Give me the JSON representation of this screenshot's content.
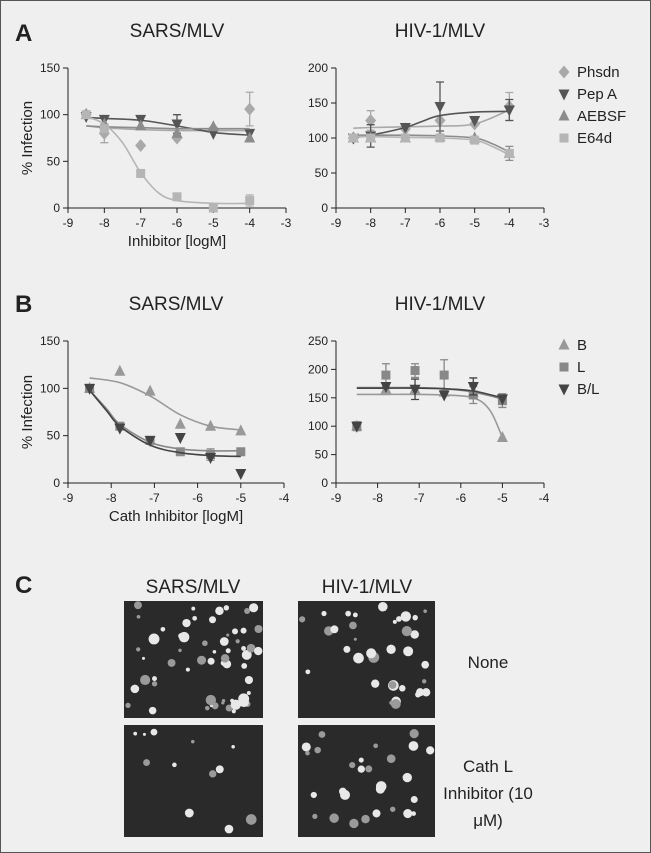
{
  "panel_labels": [
    "A",
    "B",
    "C"
  ],
  "panel_c": {
    "columns": [
      "SARS/MLV",
      "HIV-1/MLV"
    ],
    "rows": [
      "None",
      "Cath L Inhibitor (10 μM)"
    ]
  },
  "chart_data": [
    {
      "type": "scatter",
      "title": "SARS/MLV",
      "xlabel": "Inhibitor [logM]",
      "ylabel": "% Infection",
      "xlim": [
        -9,
        -3
      ],
      "xticks": [
        -9,
        -8,
        -7,
        -6,
        -5,
        -4,
        -3
      ],
      "ylim": [
        0,
        150
      ],
      "yticks": [
        0,
        50,
        100,
        150
      ],
      "legend": false,
      "series": [
        {
          "color": "#a9a9a9",
          "marker": "diamond",
          "x": [
            -8.5,
            -8,
            -7,
            -6,
            -5,
            -4
          ],
          "values": [
            100,
            80,
            67,
            75,
            85,
            106
          ],
          "errors": [
            null,
            10,
            null,
            null,
            null,
            18
          ],
          "fit_x": [
            -8.5,
            -8,
            -7,
            -6,
            -5,
            -4
          ],
          "fit": [
            88,
            86,
            84,
            83,
            83,
            83
          ]
        },
        {
          "color": "#555555",
          "marker": "triangle-down",
          "x": [
            -8.5,
            -8,
            -7,
            -6,
            -5,
            -4
          ],
          "values": [
            98,
            95,
            95,
            90,
            80,
            80
          ],
          "errors": [
            null,
            null,
            null,
            10,
            null,
            null
          ],
          "fit_x": [
            -8.5,
            -8,
            -7,
            -6,
            -5,
            -4
          ],
          "fit": [
            97,
            96,
            94,
            88,
            81,
            78
          ]
        },
        {
          "color": "#8c8c8c",
          "marker": "triangle-up",
          "x": [
            -8.5,
            -8,
            -7,
            -6,
            -5,
            -4
          ],
          "values": [
            100,
            90,
            88,
            80,
            87,
            75
          ],
          "errors": [
            null,
            null,
            null,
            null,
            null,
            null
          ],
          "fit_x": [
            -8.5,
            -8,
            -7,
            -6,
            -5,
            -4
          ],
          "fit": [
            88,
            87,
            86,
            85,
            85,
            85
          ]
        },
        {
          "color": "#b5b5b5",
          "marker": "square",
          "x": [
            -8.5,
            -8,
            -7,
            -6,
            -5,
            -4
          ],
          "values": [
            100,
            85,
            37,
            12,
            0,
            8
          ],
          "errors": [
            null,
            null,
            null,
            null,
            null,
            6
          ],
          "fit_x": [
            -8.5,
            -8,
            -7.5,
            -7,
            -6.5,
            -6,
            -5,
            -4
          ],
          "fit": [
            98,
            90,
            70,
            38,
            16,
            8,
            5,
            5
          ]
        }
      ]
    },
    {
      "type": "scatter",
      "title": "HIV-1/MLV",
      "xlim": [
        -9,
        -3
      ],
      "xticks": [
        -9,
        -8,
        -7,
        -6,
        -5,
        -4,
        -3
      ],
      "ylim": [
        0,
        200
      ],
      "yticks": [
        0,
        50,
        100,
        150,
        200
      ],
      "legend": true,
      "series": [
        {
          "name": "Phsdn",
          "color": "#a9a9a9",
          "marker": "diamond",
          "x": [
            -8.5,
            -8,
            -7,
            -6,
            -5,
            -4
          ],
          "values": [
            100,
            125,
            113,
            125,
            120,
            145
          ],
          "errors": [
            null,
            14,
            null,
            null,
            null,
            20
          ],
          "fit_x": [
            -8.5,
            -8,
            -7,
            -6,
            -5,
            -4
          ],
          "fit": [
            114,
            115,
            116,
            117,
            120,
            140
          ]
        },
        {
          "name": "Pep A",
          "color": "#555555",
          "marker": "triangle-down",
          "x": [
            -8.5,
            -8,
            -7,
            -6,
            -5,
            -4
          ],
          "values": [
            100,
            103,
            115,
            145,
            125,
            140
          ],
          "errors": [
            null,
            16,
            null,
            35,
            null,
            15
          ],
          "fit_x": [
            -8.5,
            -8,
            -7,
            -6.5,
            -6,
            -5,
            -4
          ],
          "fit": [
            101,
            104,
            115,
            124,
            132,
            137,
            138
          ]
        },
        {
          "name": "AEBSF",
          "color": "#8c8c8c",
          "marker": "triangle-up",
          "x": [
            -8.5,
            -8,
            -7,
            -6,
            -5,
            -4
          ],
          "values": [
            100,
            100,
            100,
            102,
            100,
            78
          ],
          "errors": [
            null,
            null,
            null,
            null,
            null,
            10
          ],
          "fit_x": [
            -8.5,
            -8,
            -7,
            -6,
            -5,
            -4.5,
            -4
          ],
          "fit": [
            104,
            104,
            104,
            103,
            100,
            92,
            80
          ]
        },
        {
          "name": "E64d",
          "color": "#b5b5b5",
          "marker": "square",
          "x": [
            -8.5,
            -8,
            -7,
            -6,
            -5,
            -4
          ],
          "values": [
            100,
            100,
            100,
            100,
            97,
            78
          ],
          "errors": [
            null,
            null,
            null,
            null,
            null,
            null
          ],
          "fit_x": [
            -8.5,
            -8,
            -7,
            -6,
            -5,
            -4.5,
            -4
          ],
          "fit": [
            102,
            102,
            101,
            100,
            97,
            88,
            76
          ]
        }
      ]
    },
    {
      "type": "scatter",
      "title": "SARS/MLV",
      "xlabel": "Cath Inhibitor [logM]",
      "ylabel": "% Infection",
      "xlim": [
        -9,
        -4
      ],
      "xticks": [
        -9,
        -8,
        -7,
        -6,
        -5,
        -4
      ],
      "ylim": [
        0,
        150
      ],
      "yticks": [
        0,
        50,
        100,
        150
      ],
      "legend": false,
      "series": [
        {
          "color": "#999999",
          "marker": "triangle-up",
          "x": [
            -8.5,
            -7.8,
            -7.1,
            -6.4,
            -5.7,
            -5
          ],
          "values": [
            100,
            118,
            97,
            62,
            60,
            55
          ],
          "errors": [
            null,
            null,
            null,
            null,
            null,
            null
          ],
          "fit_x": [
            -8.5,
            -7.8,
            -7.1,
            -6.4,
            -5.7,
            -5
          ],
          "fit": [
            111,
            106,
            92,
            72,
            60,
            56
          ]
        },
        {
          "color": "#888888",
          "marker": "square",
          "x": [
            -8.5,
            -7.8,
            -7.1,
            -6.4,
            -5.7,
            -5
          ],
          "values": [
            100,
            60,
            45,
            33,
            30,
            33
          ],
          "errors": [
            null,
            null,
            null,
            null,
            6,
            null
          ],
          "fit_x": [
            -8.5,
            -8.1,
            -7.8,
            -7.1,
            -6.4,
            -5.7,
            -5
          ],
          "fit": [
            98,
            78,
            62,
            43,
            36,
            34,
            34
          ]
        },
        {
          "color": "#444444",
          "marker": "triangle-down",
          "x": [
            -8.5,
            -7.8,
            -7.1,
            -6.4,
            -5.7,
            -5
          ],
          "values": [
            100,
            58,
            45,
            48,
            27,
            10
          ],
          "errors": [
            null,
            null,
            null,
            null,
            null,
            null
          ],
          "fit_x": [
            -8.5,
            -8.1,
            -7.8,
            -7.1,
            -6.4,
            -5.7,
            -5
          ],
          "fit": [
            98,
            76,
            60,
            40,
            32,
            29,
            28
          ]
        }
      ]
    },
    {
      "type": "scatter",
      "title": "HIV-1/MLV",
      "xlim": [
        -9,
        -4
      ],
      "xticks": [
        -9,
        -8,
        -7,
        -6,
        -5,
        -4
      ],
      "ylim": [
        0,
        250
      ],
      "yticks": [
        0,
        50,
        100,
        150,
        200,
        250
      ],
      "legend": true,
      "series": [
        {
          "name": "B",
          "color": "#999999",
          "marker": "triangle-up",
          "x": [
            -8.5,
            -7.8,
            -7.1,
            -6.4,
            -5.7,
            -5
          ],
          "values": [
            100,
            165,
            165,
            160,
            160,
            80
          ],
          "errors": [
            8,
            null,
            null,
            null,
            null,
            null
          ],
          "fit_x": [
            -8.5,
            -7.8,
            -7.1,
            -6.4,
            -5.7,
            -5.3,
            -5
          ],
          "fit": [
            156,
            156,
            156,
            155,
            150,
            128,
            80
          ]
        },
        {
          "name": "L",
          "color": "#888888",
          "marker": "square",
          "x": [
            -8.5,
            -7.8,
            -7.1,
            -6.4,
            -5.7,
            -5
          ],
          "values": [
            100,
            190,
            198,
            190,
            155,
            145
          ],
          "errors": [
            null,
            20,
            12,
            27,
            15,
            12
          ],
          "fit_x": [
            -8.5,
            -7.8,
            -7.1,
            -6.4,
            -5.7,
            -5
          ],
          "fit": [
            168,
            168,
            168,
            166,
            160,
            148
          ]
        },
        {
          "name": "B/L",
          "color": "#444444",
          "marker": "triangle-down",
          "x": [
            -8.5,
            -7.8,
            -7.1,
            -6.4,
            -5.7,
            -5
          ],
          "values": [
            100,
            170,
            165,
            155,
            170,
            148
          ],
          "errors": [
            null,
            null,
            18,
            null,
            15,
            null
          ],
          "fit_x": [
            -8.5,
            -7.8,
            -7.1,
            -6.4,
            -5.7,
            -5
          ],
          "fit": [
            167,
            167,
            167,
            166,
            162,
            150
          ]
        }
      ]
    }
  ]
}
